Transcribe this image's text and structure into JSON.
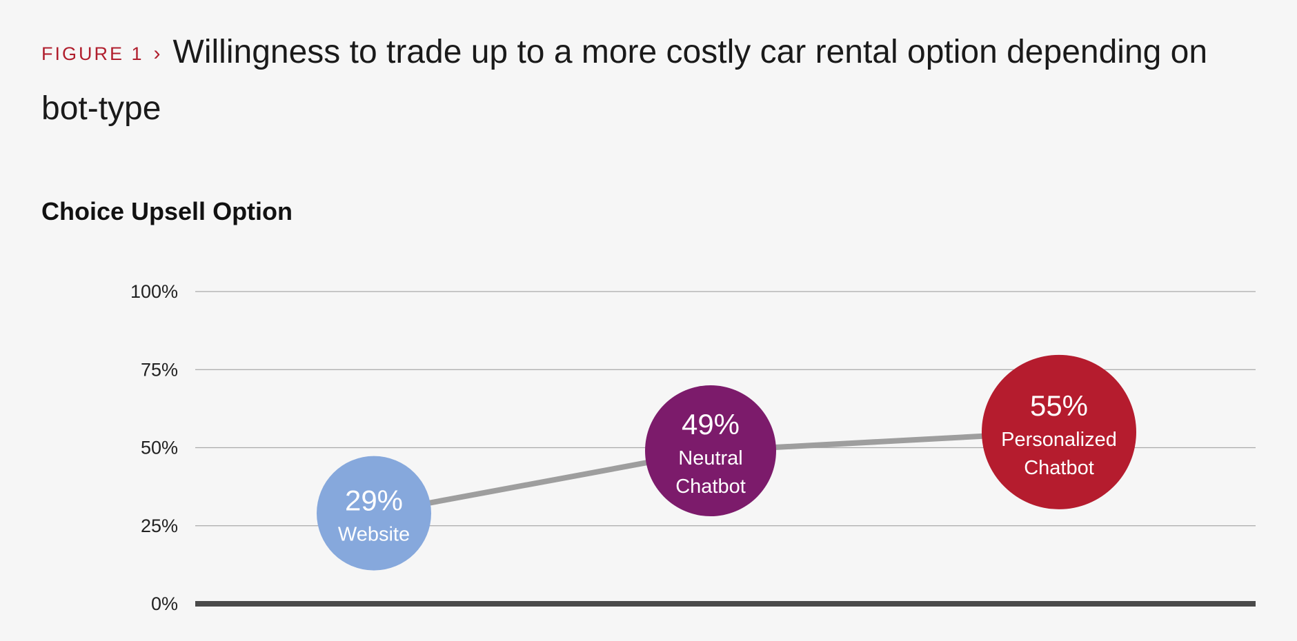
{
  "header": {
    "figure_label": "FIGURE 1",
    "arrow": "›",
    "title": "Willingness to trade up to a more costly car rental option depending on bot-type"
  },
  "chart_data": {
    "type": "line",
    "title": "Willingness to trade up to a more costly car rental option depending on bot-type",
    "subtitle": "Choice Upsell Option",
    "xlabel": "",
    "ylabel": "",
    "ylim": [
      0,
      100
    ],
    "y_ticks": [
      0,
      25,
      50,
      75,
      100
    ],
    "y_tick_labels": [
      "0%",
      "25%",
      "50%",
      "75%",
      "100%"
    ],
    "grid": true,
    "points": [
      {
        "label_lines": [
          "Website"
        ],
        "value": 29,
        "display": "29%",
        "color": "#86a8dc"
      },
      {
        "label_lines": [
          "Neutral",
          "Chatbot"
        ],
        "value": 49,
        "display": "49%",
        "color": "#7c1b6b"
      },
      {
        "label_lines": [
          "Personalized",
          "Chatbot"
        ],
        "value": 55,
        "display": "55%",
        "color": "#b51c2e"
      }
    ],
    "line_color": "#9e9e9e"
  }
}
